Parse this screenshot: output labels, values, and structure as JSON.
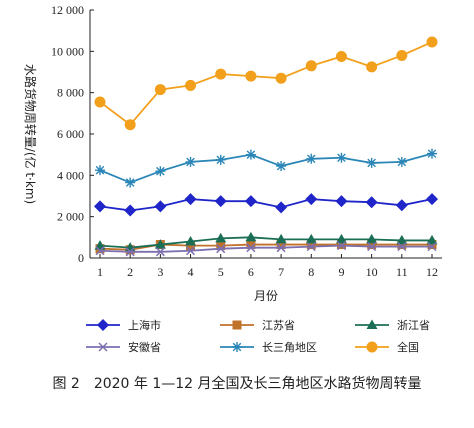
{
  "caption": "图 2　2020 年 1—12 月全国及长三角地区水路货物周转量",
  "chart_data": {
    "type": "line",
    "title": "",
    "xlabel": "月份",
    "ylabel": "水路货物周转量/(亿 t·km)",
    "x": [
      1,
      2,
      3,
      4,
      5,
      6,
      7,
      8,
      9,
      10,
      11,
      12
    ],
    "ylim": [
      0,
      12000
    ],
    "yticks": [
      0,
      2000,
      4000,
      6000,
      8000,
      10000,
      12000
    ],
    "ytick_labels": [
      "0",
      "2 000",
      "4 000",
      "6 000",
      "8 000",
      "10 000",
      "12 000"
    ],
    "grid": false,
    "legend_position": "bottom",
    "series": [
      {
        "name": "上海市",
        "color": "#1f25c8",
        "marker": "diamond",
        "values": [
          2500,
          2300,
          2500,
          2850,
          2750,
          2750,
          2450,
          2850,
          2750,
          2700,
          2550,
          2850
        ]
      },
      {
        "name": "江苏省",
        "color": "#c0712a",
        "marker": "square",
        "values": [
          450,
          400,
          650,
          600,
          600,
          650,
          650,
          650,
          650,
          650,
          650,
          650
        ]
      },
      {
        "name": "浙江省",
        "color": "#1b6e56",
        "marker": "triangle",
        "values": [
          600,
          500,
          650,
          800,
          950,
          1000,
          900,
          900,
          900,
          900,
          850,
          850
        ]
      },
      {
        "name": "安徽省",
        "color": "#7c6fb0",
        "marker": "x",
        "values": [
          350,
          300,
          300,
          350,
          450,
          500,
          500,
          550,
          600,
          550,
          550,
          550
        ]
      },
      {
        "name": "长三角地区",
        "color": "#2b86b8",
        "marker": "star",
        "values": [
          4250,
          3650,
          4200,
          4650,
          4750,
          5000,
          4450,
          4800,
          4850,
          4600,
          4650,
          5050
        ]
      },
      {
        "name": "全国",
        "color": "#f2a01c",
        "marker": "circle",
        "values": [
          7550,
          6450,
          8150,
          8350,
          8900,
          8800,
          8700,
          9300,
          9750,
          9250,
          9800,
          10450
        ]
      }
    ]
  }
}
